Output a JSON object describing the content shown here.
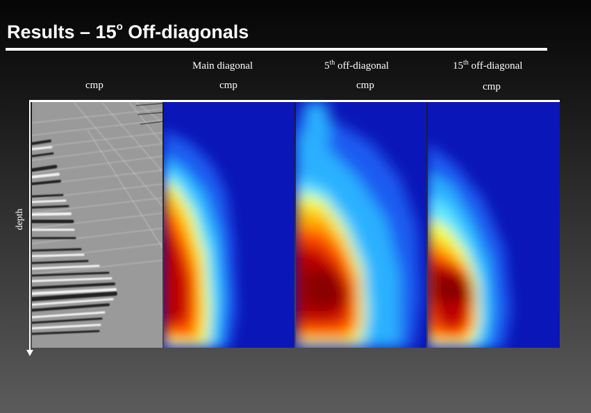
{
  "slide": {
    "title_main": "Results – 15",
    "title_sup": "o",
    "title_rest": " Off-diagonals"
  },
  "axes": {
    "vertical_label": "depth",
    "cmp_label": "cmp"
  },
  "panels": [
    {
      "kind": "seismic-image",
      "heading": "",
      "x_label": "cmp"
    },
    {
      "kind": "heatmap",
      "heading": "Main diagonal",
      "x_label": "cmp"
    },
    {
      "kind": "heatmap",
      "heading_prefix": "5",
      "heading_sup": "th",
      "heading_suffix": " off-diagonal",
      "x_label": "cmp"
    },
    {
      "kind": "heatmap",
      "heading_prefix": "15",
      "heading_sup": "th",
      "heading_suffix": " off-diagonal",
      "x_label": "cmp"
    }
  ],
  "colors": {
    "background_top": "#050505",
    "background_bottom": "#5b5b5b",
    "text": "#ffffff",
    "colormap": [
      "#0b16b8",
      "#1a5cf0",
      "#2bb0ff",
      "#5fe8ff",
      "#f4ff40",
      "#ffb000",
      "#ff4a00",
      "#c00000",
      "#8a0000"
    ]
  }
}
